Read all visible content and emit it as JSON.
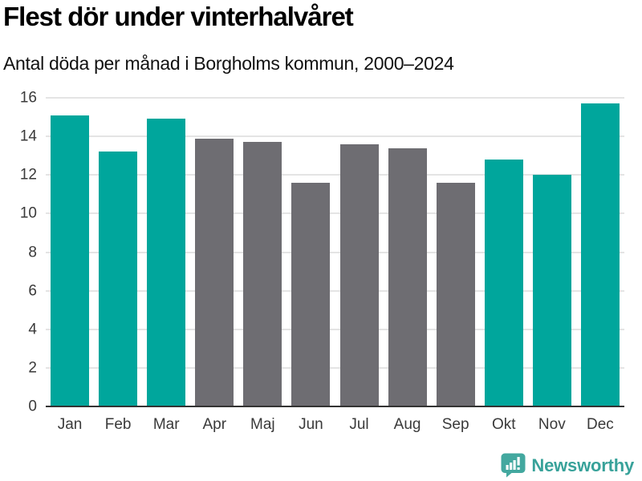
{
  "title": "Flest dör under vinterhalvåret",
  "subtitle": "Antal döda per månad i Borgholms kommun, 2000–2024",
  "chart_data": {
    "type": "bar",
    "categories": [
      "Jan",
      "Feb",
      "Mar",
      "Apr",
      "Maj",
      "Jun",
      "Jul",
      "Aug",
      "Sep",
      "Okt",
      "Nov",
      "Dec"
    ],
    "values": [
      15.1,
      13.2,
      14.9,
      13.9,
      13.7,
      11.6,
      13.6,
      13.4,
      11.6,
      12.8,
      12.0,
      15.7
    ],
    "bar_colors": [
      "highlight",
      "highlight",
      "highlight",
      "neutral",
      "neutral",
      "neutral",
      "neutral",
      "neutral",
      "neutral",
      "highlight",
      "highlight",
      "highlight"
    ],
    "title": "Flest dör under vinterhalvåret",
    "subtitle": "Antal döda per månad i Borgholms kommun, 2000–2024",
    "xlabel": "",
    "ylabel": "",
    "ylim": [
      0,
      16
    ],
    "yticks": [
      0,
      2,
      4,
      6,
      8,
      10,
      12,
      14,
      16
    ],
    "grid": true,
    "legend": "none",
    "colors": {
      "highlight": "#00a69c",
      "neutral": "#6e6d72",
      "gridline": "#e4e4e4",
      "axis_line": "#333333",
      "tick_label": "#3a3a3a"
    }
  },
  "branding": {
    "logo_text": "Newsworthy",
    "logo_text_color": "#38a29a",
    "logo_icon": "newsworthy-speech-bubble-bar-chart-icon",
    "logo_icon_color": "#43a89f"
  }
}
